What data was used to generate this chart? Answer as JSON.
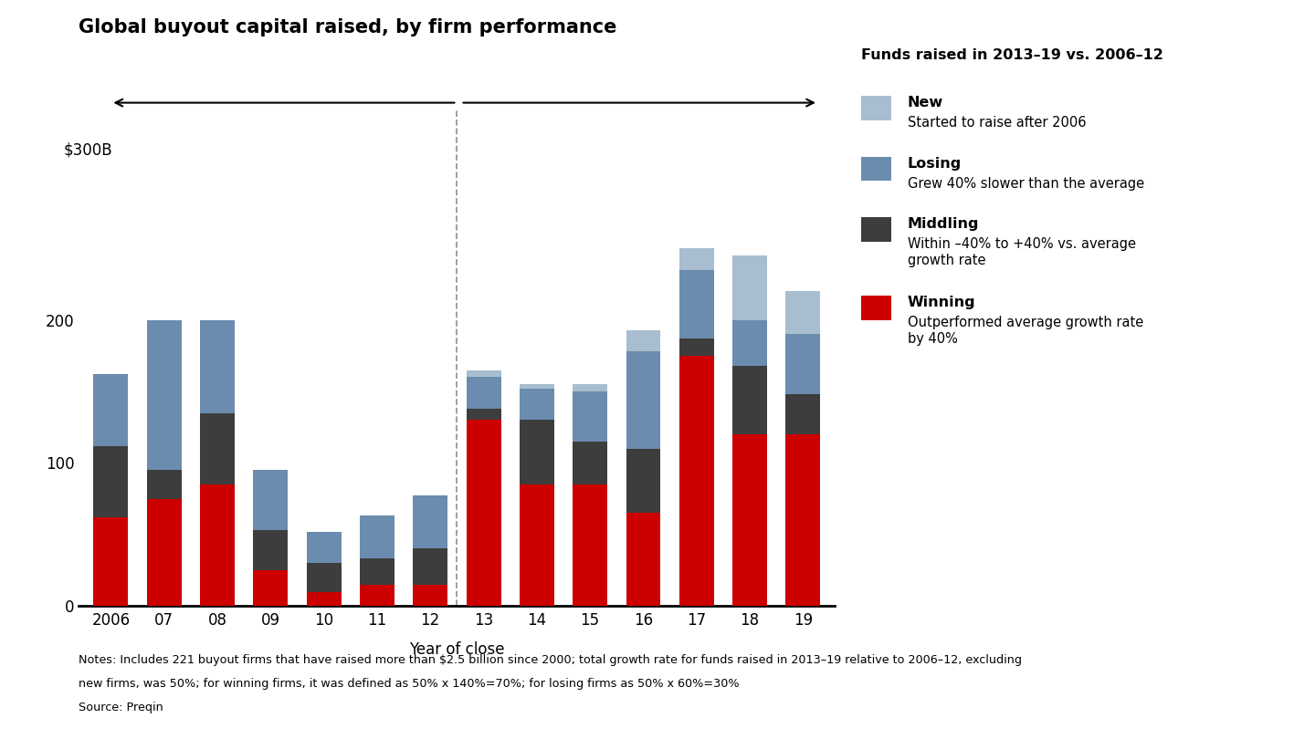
{
  "title": "Global buyout capital raised, by firm performance",
  "xlabel": "Year of close",
  "years": [
    "2006",
    "07",
    "08",
    "09",
    "10",
    "11",
    "12",
    "13",
    "14",
    "15",
    "16",
    "17",
    "18",
    "19"
  ],
  "winning": [
    62,
    75,
    85,
    25,
    10,
    15,
    15,
    130,
    85,
    85,
    65,
    175,
    120,
    120
  ],
  "middling": [
    50,
    20,
    50,
    28,
    20,
    18,
    25,
    8,
    45,
    30,
    45,
    12,
    48,
    28
  ],
  "losing": [
    50,
    105,
    65,
    42,
    22,
    30,
    37,
    22,
    22,
    35,
    68,
    48,
    32,
    42
  ],
  "new": [
    0,
    0,
    0,
    0,
    0,
    0,
    0,
    5,
    3,
    5,
    15,
    15,
    45,
    30
  ],
  "colors": {
    "winning": "#cc0000",
    "middling": "#3d3d3d",
    "losing": "#6b8cae",
    "new": "#a8bdd0"
  },
  "ylim": [
    0,
    310
  ],
  "yticks": [
    0,
    100,
    200
  ],
  "background": "#ffffff",
  "arrow_label": "Funds raised in 2013–19 vs. 2006–12",
  "ylabel_text": "$300B",
  "notes_line1": "Notes: Includes 221 buyout firms that have raised more than $2.5 billion since 2000; total growth rate for funds raised in 2013–19 relative to 2006–12, excluding",
  "notes_line2": "new firms, was 50%; for winning firms, it was defined as 50% x 140%=70%; for losing firms as 50% x 60%=30%",
  "source": "Source: Preqin",
  "legend": [
    {
      "label": "New",
      "desc": "Started to raise after 2006",
      "color": "#a8bdd0"
    },
    {
      "label": "Losing",
      "desc": "Grew 40% slower than the average",
      "color": "#6b8cae"
    },
    {
      "label": "Middling",
      "desc": "Within –40% to +40% vs. average\ngrowth rate",
      "color": "#3d3d3d"
    },
    {
      "label": "Winning",
      "desc": "Outperformed average growth rate\nby 40%",
      "color": "#cc0000"
    }
  ]
}
